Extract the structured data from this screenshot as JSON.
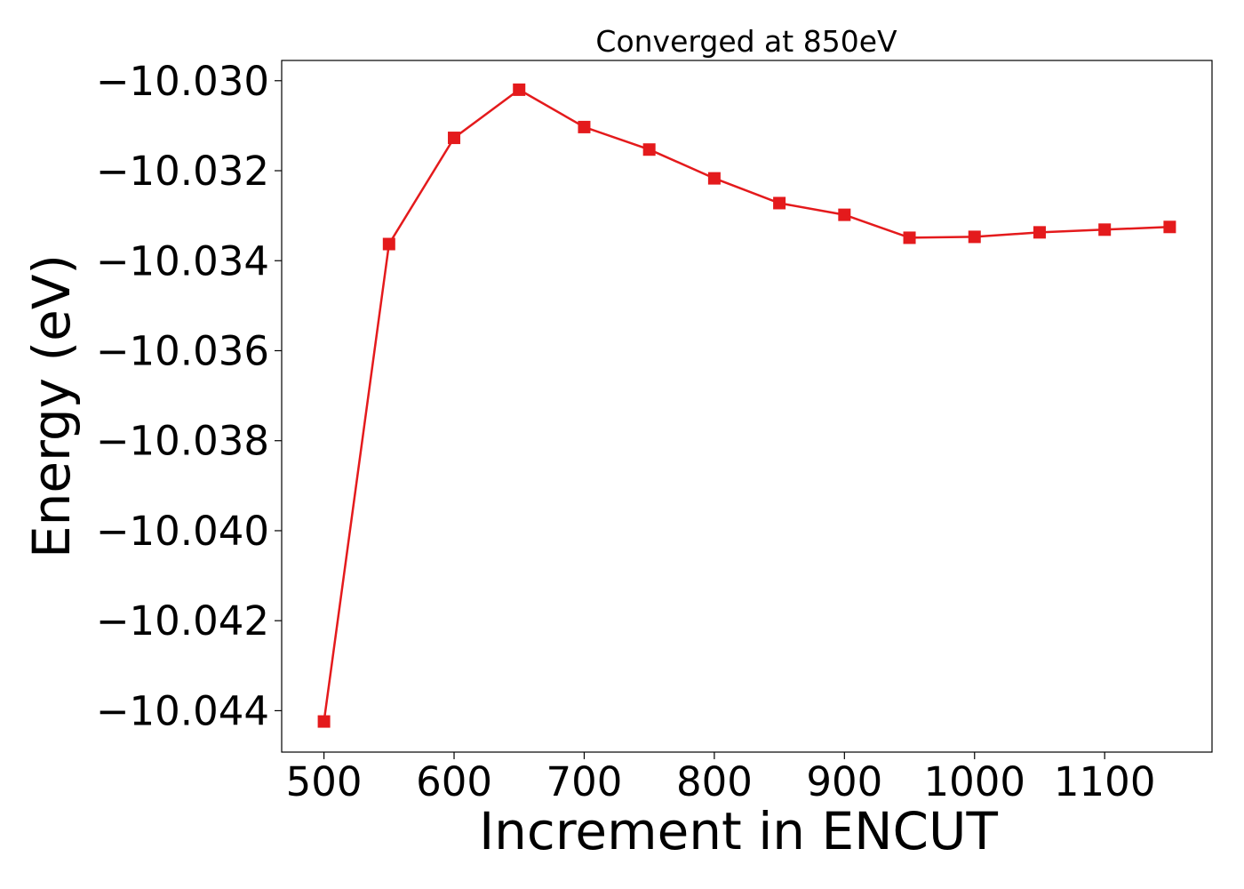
{
  "chart_data": {
    "type": "line",
    "title": "Converged at 850eV",
    "xlabel": "Increment in ENCUT",
    "ylabel": "Energy (eV)",
    "xlim": [
      467.5,
      1182.5
    ],
    "ylim": [
      -10.04492,
      -10.02955
    ],
    "x_ticks": [
      500,
      600,
      700,
      800,
      900,
      1000,
      1100
    ],
    "x_tick_labels": [
      "500",
      "600",
      "700",
      "800",
      "900",
      "1000",
      "1100"
    ],
    "y_ticks": [
      -10.03,
      -10.032,
      -10.034,
      -10.036,
      -10.038,
      -10.04,
      -10.042,
      -10.044
    ],
    "y_tick_labels": [
      "−10.030",
      "−10.032",
      "−10.034",
      "−10.036",
      "−10.038",
      "−10.040",
      "−10.042",
      "−10.044"
    ],
    "grid": false,
    "series": [
      {
        "color": "#e41a1c",
        "marker": "square",
        "x": [
          500,
          550,
          600,
          650,
          700,
          750,
          800,
          850,
          900,
          950,
          1000,
          1050,
          1100,
          1150
        ],
        "y": [
          -10.04424,
          -10.03363,
          -10.03127,
          -10.0302,
          -10.03103,
          -10.03153,
          -10.03217,
          -10.03272,
          -10.03298,
          -10.03349,
          -10.03347,
          -10.03337,
          -10.03331,
          -10.03325
        ]
      }
    ]
  }
}
